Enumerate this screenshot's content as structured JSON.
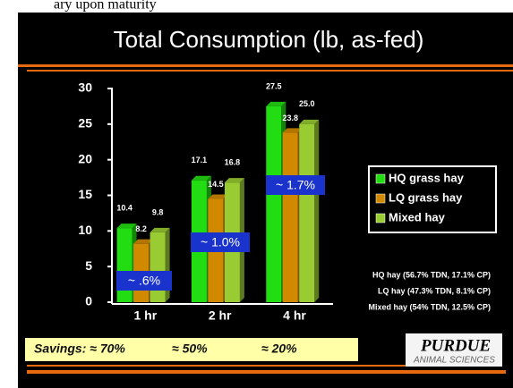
{
  "top_fragment": "ary upon maturity",
  "chart_data": {
    "type": "bar",
    "title": "Total Consumption (lb, as-fed)",
    "categories": [
      "1 hr",
      "2 hr",
      "4 hr"
    ],
    "series": [
      {
        "name": "HQ grass hay",
        "color": "#22dd11",
        "values": [
          10.4,
          17.1,
          27.5
        ],
        "value_labels": [
          "10.4",
          "17.1",
          "27.5"
        ]
      },
      {
        "name": "LQ grass hay",
        "color": "#d18a00",
        "values": [
          8.2,
          14.5,
          23.8
        ],
        "value_labels": [
          "8.2",
          "14.5",
          "23.8"
        ]
      },
      {
        "name": "Mixed hay",
        "color": "#99cc33",
        "values": [
          9.8,
          16.8,
          25.0
        ],
        "value_labels": [
          "9.8",
          "16.8",
          "25.0"
        ]
      }
    ],
    "ylim": [
      0,
      30
    ],
    "yticks": [
      0,
      5,
      10,
      15,
      20,
      25,
      30
    ],
    "legend": "right",
    "annotations": [
      "~ .6%",
      "~ 1.0%",
      "~ 1.7%"
    ],
    "notes": [
      "HQ hay (56.7% TDN, 17.1% CP)",
      "LQ hay (47.3% TDN, 8.1% CP)",
      "Mixed hay (54% TDN, 12.5% CP)"
    ],
    "savings": [
      "Savings: ≈ 70%",
      "≈ 50%",
      "≈ 20%"
    ],
    "logo": {
      "name": "PURDUE",
      "sub": "ANIMAL SCIENCES"
    }
  }
}
